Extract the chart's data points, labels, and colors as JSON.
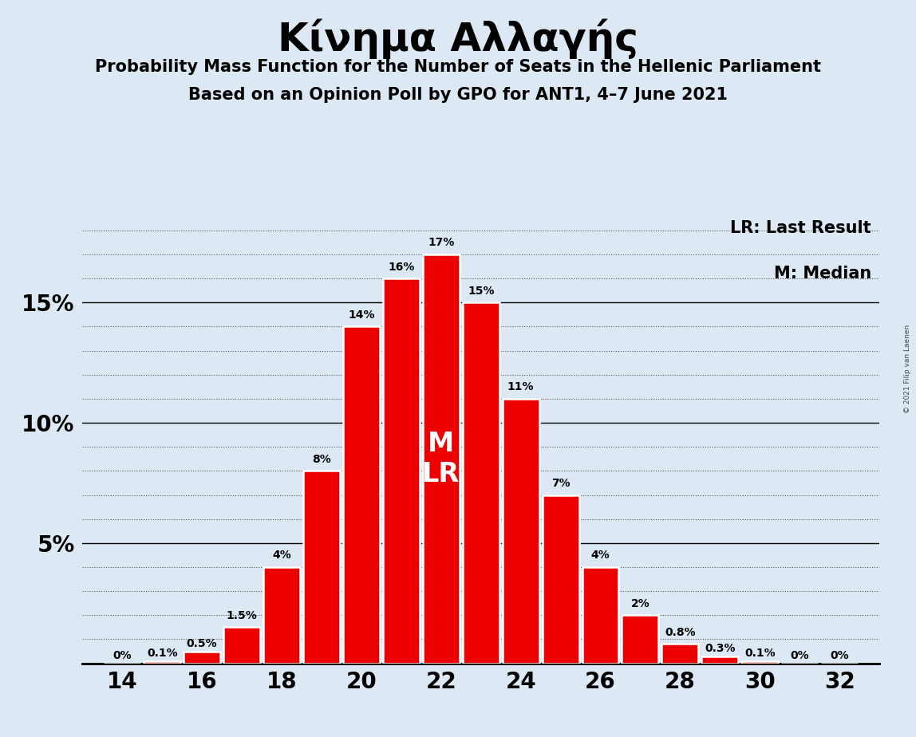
{
  "title": "Κίνημα Αλλαγής",
  "subtitle1": "Probability Mass Function for the Number of Seats in the Hellenic Parliament",
  "subtitle2": "Based on an Opinion Poll by GPO for ANT1, 4–7 June 2021",
  "copyright": "© 2021 Filip van Laenen",
  "legend1": "LR: Last Result",
  "legend2": "M: Median",
  "seats": [
    14,
    15,
    16,
    17,
    18,
    19,
    20,
    21,
    22,
    23,
    24,
    25,
    26,
    27,
    28,
    29,
    30,
    31,
    32
  ],
  "probabilities": [
    0.0,
    0.1,
    0.5,
    1.5,
    4.0,
    8.0,
    14.0,
    16.0,
    17.0,
    15.0,
    11.0,
    7.0,
    4.0,
    2.0,
    0.8,
    0.3,
    0.1,
    0.0,
    0.0
  ],
  "labels": [
    "0%",
    "0.1%",
    "0.5%",
    "1.5%",
    "4%",
    "8%",
    "14%",
    "16%",
    "17%",
    "15%",
    "11%",
    "7%",
    "4%",
    "2%",
    "0.8%",
    "0.3%",
    "0.1%",
    "0%",
    "0%"
  ],
  "bar_color": "#ee0000",
  "background_color": "#dce9f5",
  "ml_label_seat": 22,
  "yticks_solid": [
    5,
    10,
    15
  ],
  "yticks_dotted_extra": [
    1,
    2,
    3,
    4,
    6,
    7,
    8,
    9,
    11,
    12,
    13,
    14,
    16,
    17,
    18
  ],
  "ylim": [
    0,
    19
  ],
  "xlabel_seats": [
    14,
    16,
    18,
    20,
    22,
    24,
    26,
    28,
    30,
    32
  ]
}
